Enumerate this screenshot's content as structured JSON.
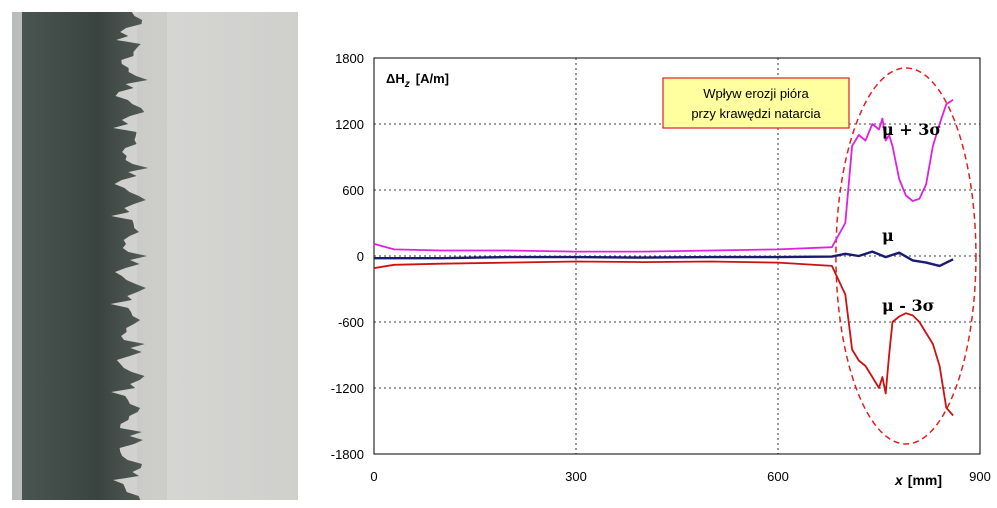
{
  "photo": {
    "background": "#d8d8d6",
    "edge_color": "#3c4640"
  },
  "chart_data": {
    "type": "line",
    "ylabel_parts": [
      "ΔH",
      "z",
      "[A/m]"
    ],
    "xlabel_parts": [
      "x",
      "[mm]"
    ],
    "xlim": [
      0,
      900
    ],
    "ylim": [
      -1800,
      1800
    ],
    "xticks": [
      0,
      300,
      600,
      900
    ],
    "yticks": [
      1800,
      1200,
      600,
      0,
      -600,
      -1200,
      -1800
    ],
    "grid": true,
    "annotation": {
      "lines": [
        "Wpływ erozji pióra",
        "przy krawędzi natarcia"
      ],
      "fill": "#ffffa0",
      "border": "#e02020"
    },
    "region": {
      "style": "dashed-ellipse",
      "color": "#e02020"
    },
    "series": [
      {
        "name": "μ + 3σ",
        "color": "#e020e0",
        "x": [
          0,
          30,
          100,
          200,
          300,
          400,
          500,
          600,
          680,
          700,
          710,
          720,
          730,
          740,
          750,
          755,
          760,
          765,
          770,
          780,
          790,
          800,
          810,
          820,
          830,
          840,
          850,
          860
        ],
        "y": [
          110,
          60,
          50,
          50,
          40,
          40,
          50,
          60,
          80,
          300,
          1000,
          1100,
          1050,
          1200,
          1150,
          1250,
          1050,
          1100,
          1000,
          700,
          550,
          500,
          520,
          650,
          1000,
          1200,
          1380,
          1420
        ]
      },
      {
        "name": "μ",
        "color": "#1a1a70",
        "x": [
          0,
          100,
          200,
          300,
          400,
          500,
          600,
          680,
          700,
          720,
          740,
          760,
          780,
          800,
          820,
          840,
          860
        ],
        "y": [
          -20,
          -20,
          -10,
          -10,
          -15,
          -10,
          -10,
          -5,
          20,
          0,
          40,
          -10,
          30,
          -40,
          -60,
          -90,
          -30
        ]
      },
      {
        "name": "μ - 3σ",
        "color": "#cc1111",
        "x": [
          0,
          30,
          100,
          200,
          300,
          400,
          500,
          600,
          680,
          700,
          710,
          720,
          730,
          740,
          750,
          755,
          760,
          765,
          770,
          780,
          790,
          800,
          810,
          820,
          830,
          840,
          850,
          860
        ],
        "y": [
          -110,
          -80,
          -70,
          -60,
          -50,
          -55,
          -50,
          -60,
          -90,
          -350,
          -850,
          -950,
          -1000,
          -1100,
          -1200,
          -1100,
          -1250,
          -900,
          -600,
          -550,
          -520,
          -540,
          -600,
          -700,
          -800,
          -1000,
          -1380,
          -1450
        ]
      }
    ]
  }
}
